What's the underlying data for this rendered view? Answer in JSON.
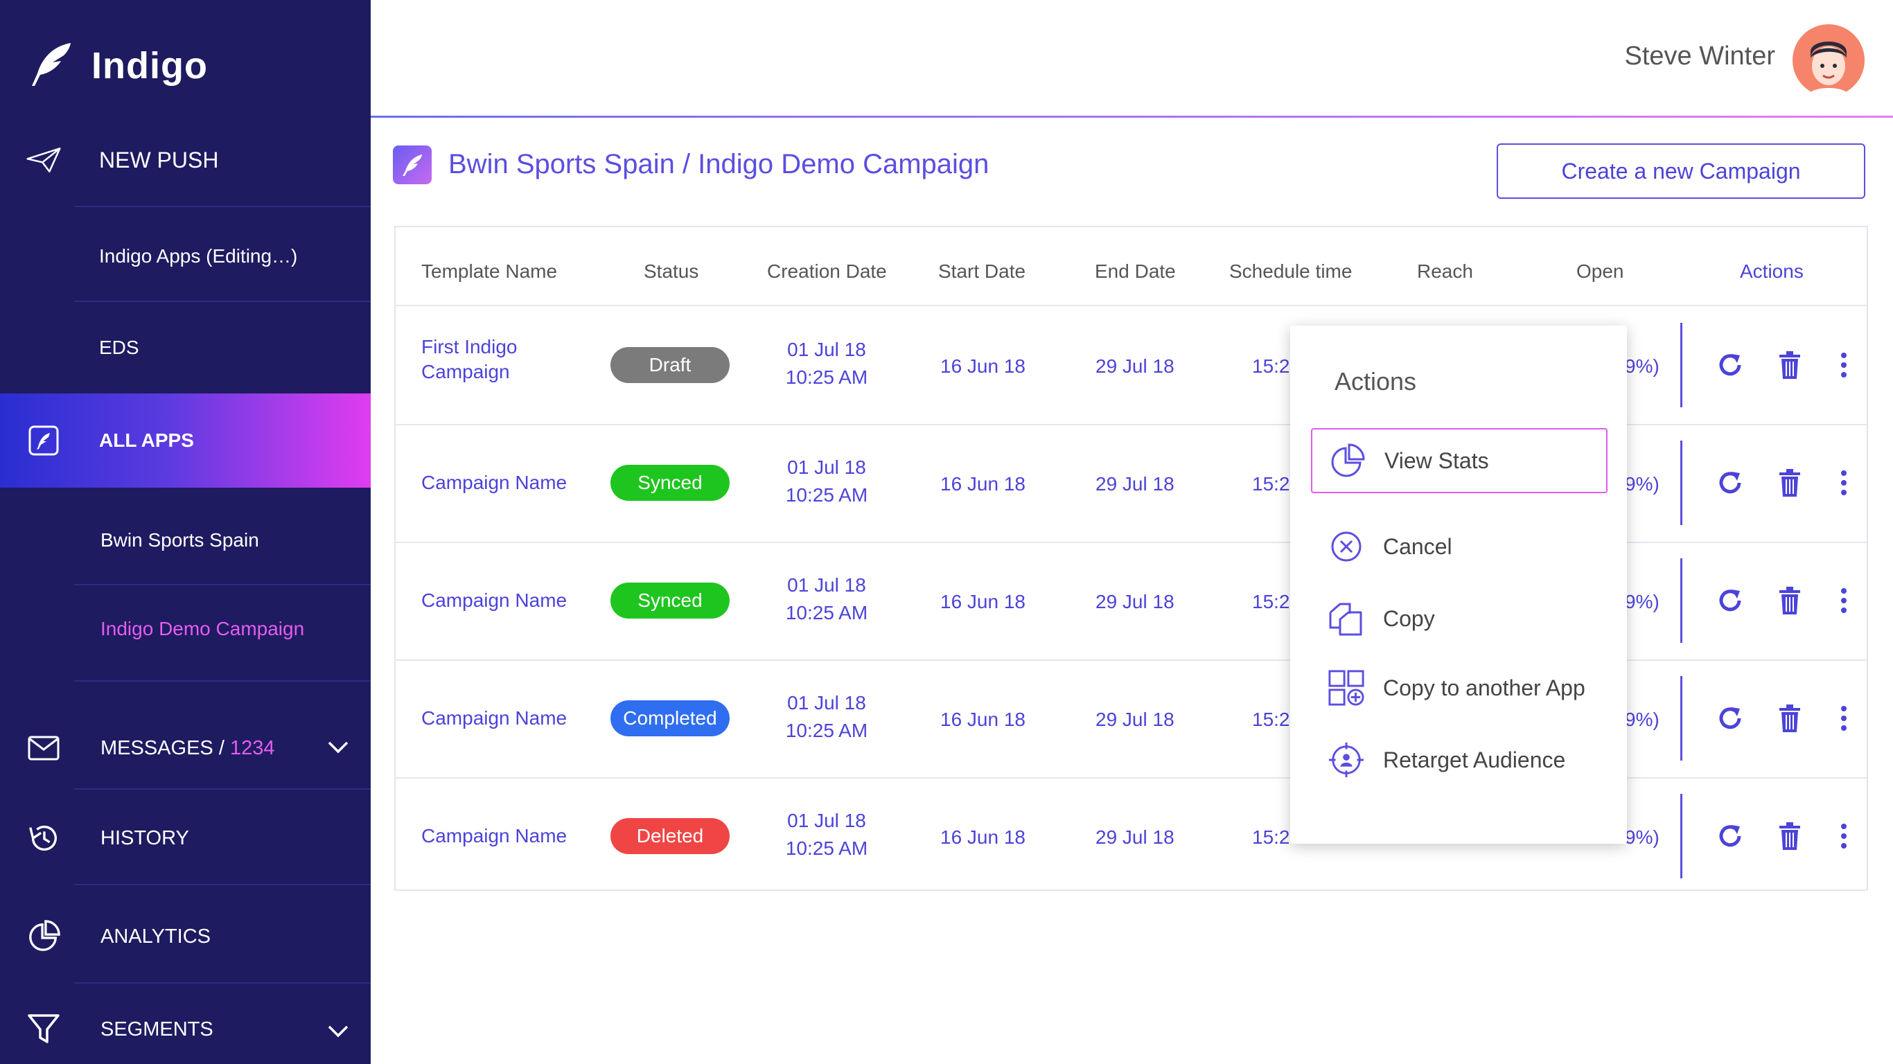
{
  "app": {
    "name": "Indigo"
  },
  "user": {
    "name": "Steve Winter"
  },
  "sidebar": {
    "new_push": "NEW PUSH",
    "indigo_apps": "Indigo Apps (Editing…)",
    "eds": "EDS",
    "all_apps": "ALL APPS",
    "bwin": "Bwin Sports Spain",
    "demo_campaign": "Indigo Demo Campaign",
    "messages": "MESSAGES",
    "messages_sep": " / ",
    "messages_count": "1234",
    "history": "HISTORY",
    "analytics": "ANALYTICS",
    "segments": "SEGMENTS"
  },
  "breadcrumb": "Bwin Sports Spain / Indigo Demo Campaign",
  "create_button": "Create a new Campaign",
  "table": {
    "headers": [
      "Template Name",
      "Status",
      "Creation Date",
      "Start Date",
      "End Date",
      "Schedule time",
      "Reach",
      "Open",
      "Actions"
    ],
    "rows": [
      {
        "name1": "First Indigo",
        "name2": "Campaign",
        "status": "Draft",
        "cdate": "01 Jul 18",
        "ctime": "10:25 AM",
        "start": "16 Jun 18",
        "end": "29 Jul 18",
        "sched": "15:2",
        "open": "9%)"
      },
      {
        "name1": "Campaign Name",
        "name2": "",
        "status": "Synced",
        "cdate": "01 Jul 18",
        "ctime": "10:25 AM",
        "start": "16 Jun 18",
        "end": "29 Jul 18",
        "sched": "15:2",
        "open": "9%)"
      },
      {
        "name1": "Campaign Name",
        "name2": "",
        "status": "Synced",
        "cdate": "01 Jul 18",
        "ctime": "10:25 AM",
        "start": "16 Jun 18",
        "end": "29 Jul 18",
        "sched": "15:2",
        "open": "9%)"
      },
      {
        "name1": "Campaign Name",
        "name2": "",
        "status": "Completed",
        "cdate": "01 Jul 18",
        "ctime": "10:25 AM",
        "start": "16 Jun 18",
        "end": "29 Jul 18",
        "sched": "15:2",
        "open": "9%)"
      },
      {
        "name1": "Campaign Name",
        "name2": "",
        "status": "Deleted",
        "cdate": "01 Jul 18",
        "ctime": "10:25 AM",
        "start": "16 Jun 18",
        "end": "29 Jul 18",
        "sched": "15:2",
        "open": "9%)"
      }
    ]
  },
  "popup": {
    "title": "Actions",
    "items": [
      "View Stats",
      "Cancel",
      "Copy",
      "Copy to another App",
      "Retarget Audience"
    ]
  },
  "colors": {
    "sidebar_bg": "#1e1b60",
    "accent": "#4c43d8",
    "highlight": "#e13cf0",
    "draft": "#7b7b7b",
    "synced": "#1fc51f",
    "completed": "#2f6ef0",
    "deleted": "#f04545"
  },
  "icons": [
    "feather-logo-icon",
    "paper-plane-icon",
    "edit-app-icon",
    "envelope-icon",
    "history-icon",
    "pie-chart-icon",
    "funnel-icon",
    "chevron-down-icon",
    "refresh-icon",
    "trash-icon",
    "more-vertical-icon",
    "pie-stats-icon",
    "cancel-circle-icon",
    "copy-icon",
    "copy-app-icon",
    "target-user-icon"
  ]
}
